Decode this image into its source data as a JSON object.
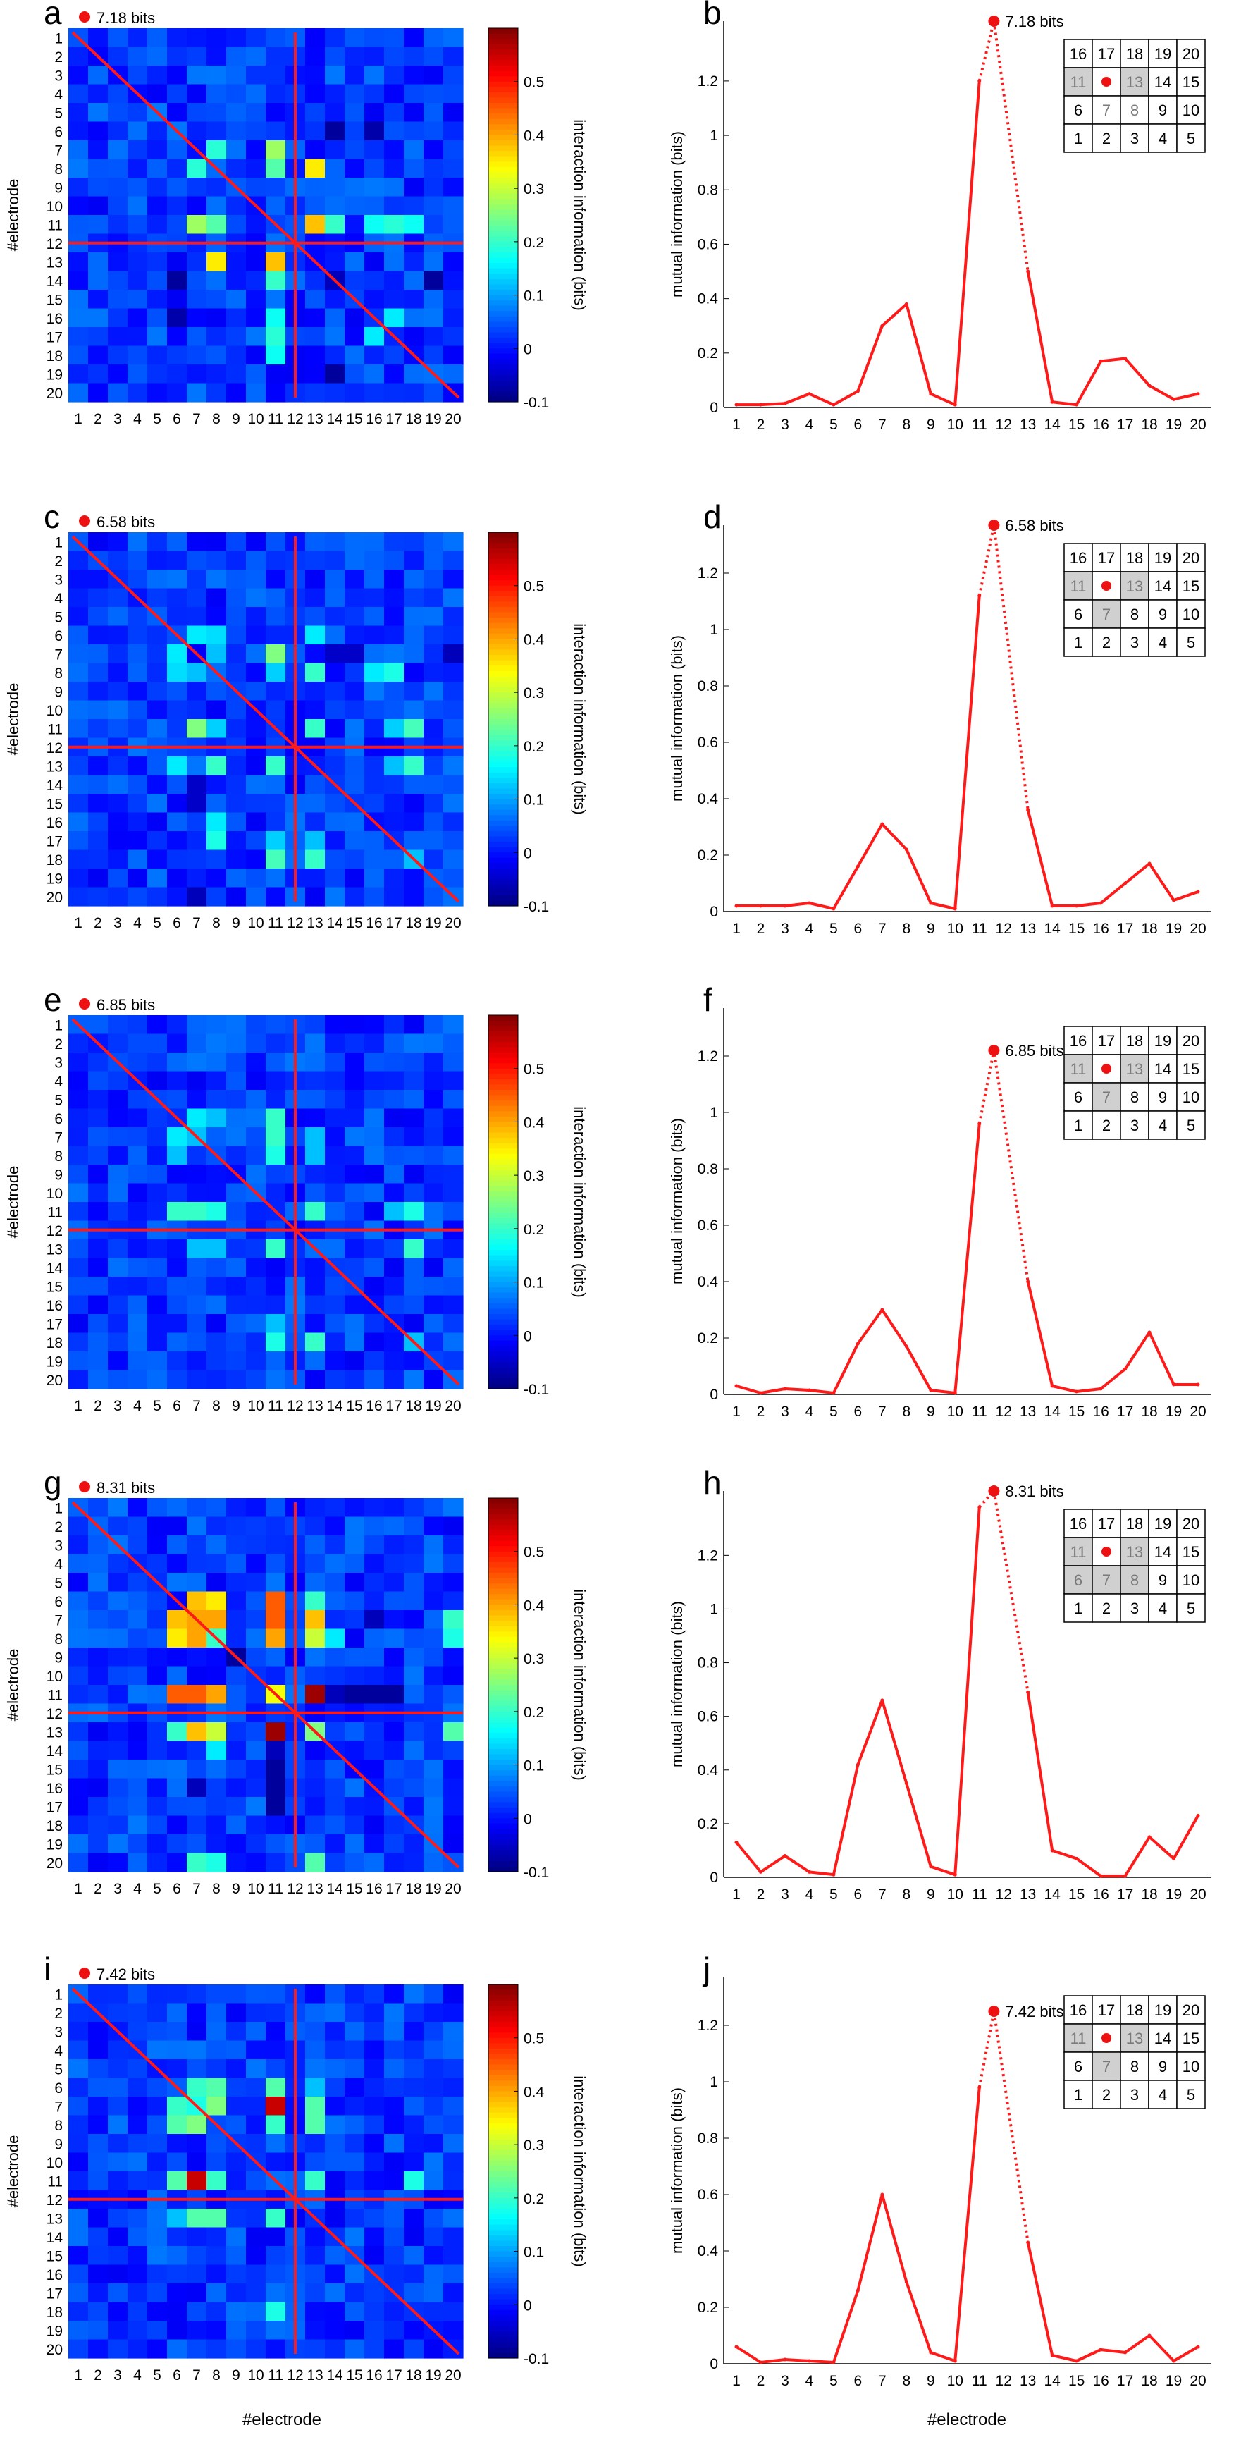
{
  "figure": {
    "shared_xlabel_left": "#electrode",
    "shared_xlabel_right": "#electrode",
    "heatmap_ylabel": "#electrode",
    "colorbar_label": "interaction information (bits)",
    "colorbar_ticks": [
      "0.5",
      "0.4",
      "0.3",
      "0.2",
      "0.1",
      "0",
      "-0.1"
    ],
    "colorbar_tick_values": [
      0.5,
      0.4,
      0.3,
      0.2,
      0.1,
      0,
      -0.1
    ],
    "colorbar_range": [
      -0.1,
      0.6
    ],
    "mi_ylabel": "mutual information (bits)",
    "electrode_labels": [
      "1",
      "2",
      "3",
      "4",
      "5",
      "6",
      "7",
      "8",
      "9",
      "10",
      "11",
      "12",
      "13",
      "14",
      "15",
      "16",
      "17",
      "18",
      "19",
      "20"
    ],
    "grid_rows": [
      [
        "16",
        "17",
        "18",
        "19",
        "20"
      ],
      [
        "11",
        "12",
        "13",
        "14",
        "15"
      ],
      [
        "6",
        "7",
        "8",
        "9",
        "10"
      ],
      [
        "1",
        "2",
        "3",
        "4",
        "5"
      ]
    ],
    "colors": {
      "line": "#ff1a1a",
      "marker": "#ee1111",
      "cell_gray": "#d0d0d0",
      "gray_text": "#7a7a7a"
    }
  },
  "chart_data": [
    {
      "type": "heatmap",
      "panel": "a",
      "total_label": "7.18 bits",
      "target_electrode": 12,
      "hot_cells": [
        [
          7,
          8,
          0.22
        ],
        [
          8,
          7,
          0.19
        ],
        [
          8,
          13,
          0.32
        ],
        [
          11,
          7,
          0.3
        ],
        [
          11,
          8,
          0.2
        ],
        [
          11,
          13,
          0.35
        ],
        [
          11,
          16,
          0.17
        ],
        [
          11,
          17,
          0.17
        ],
        [
          11,
          18,
          0.17
        ],
        [
          7,
          11,
          0.27
        ],
        [
          8,
          11,
          0.22
        ],
        [
          13,
          8,
          0.35
        ],
        [
          13,
          11,
          0.38
        ],
        [
          14,
          11,
          0.2
        ],
        [
          16,
          11,
          0.17
        ],
        [
          17,
          11,
          0.19
        ],
        [
          16,
          17,
          0.15
        ],
        [
          6,
          14,
          -0.08
        ],
        [
          6,
          16,
          -0.07
        ],
        [
          14,
          14,
          -0.06
        ],
        [
          19,
          14,
          -0.08
        ]
      ]
    },
    {
      "type": "line",
      "panel": "b",
      "peak_label": "7.18 bits",
      "peak": 1.42,
      "x": [
        1,
        2,
        3,
        4,
        5,
        6,
        7,
        8,
        9,
        10,
        11,
        12,
        13,
        14,
        15,
        16,
        17,
        18,
        19,
        20
      ],
      "values": [
        0.01,
        0.01,
        0.015,
        0.05,
        0.01,
        0.06,
        0.3,
        0.38,
        0.05,
        0.01,
        1.2,
        null,
        0.5,
        0.02,
        0.01,
        0.17,
        0.18,
        0.08,
        0.03,
        0.05
      ],
      "ylim": [
        0,
        1.42
      ],
      "yticks": [
        0,
        0.2,
        0.4,
        0.6,
        0.8,
        1,
        1.2
      ],
      "gray_cells": [
        "11",
        "13"
      ],
      "gray_text_cells": [
        "11",
        "13",
        "7",
        "8"
      ]
    },
    {
      "type": "heatmap",
      "panel": "c",
      "total_label": "6.58 bits",
      "target_electrode": 12,
      "hot_cells": [
        [
          6,
          7,
          0.15
        ],
        [
          6,
          8,
          0.14
        ],
        [
          6,
          13,
          0.15
        ],
        [
          7,
          11,
          0.22
        ],
        [
          8,
          7,
          0.12
        ],
        [
          8,
          13,
          0.12
        ],
        [
          11,
          7,
          0.25
        ],
        [
          11,
          8,
          0.13
        ],
        [
          11,
          13,
          0.22
        ],
        [
          11,
          17,
          0.13
        ],
        [
          11,
          18,
          0.21
        ],
        [
          13,
          8,
          0.2
        ],
        [
          13,
          11,
          0.2
        ],
        [
          13,
          18,
          0.14
        ],
        [
          16,
          8,
          0.15
        ],
        [
          17,
          8,
          0.18
        ],
        [
          17,
          13,
          0.12
        ],
        [
          18,
          13,
          0.2
        ],
        [
          18,
          18,
          0.12
        ],
        [
          7,
          14,
          -0.05
        ],
        [
          7,
          15,
          -0.05
        ],
        [
          7,
          20,
          -0.06
        ]
      ]
    },
    {
      "type": "line",
      "panel": "d",
      "peak_label": "6.58 bits",
      "peak": 1.37,
      "x": [
        1,
        2,
        3,
        4,
        5,
        6,
        7,
        8,
        9,
        10,
        11,
        12,
        13,
        14,
        15,
        16,
        17,
        18,
        19,
        20
      ],
      "values": [
        0.02,
        0.02,
        0.02,
        0.03,
        0.01,
        0.16,
        0.31,
        0.22,
        0.03,
        0.01,
        1.12,
        null,
        0.36,
        0.02,
        0.02,
        0.03,
        0.1,
        0.17,
        0.04,
        0.07
      ],
      "ylim": [
        0,
        1.37
      ],
      "yticks": [
        0,
        0.2,
        0.4,
        0.6,
        0.8,
        1,
        1.2
      ],
      "gray_cells": [
        "11",
        "13",
        "7"
      ],
      "gray_text_cells": [
        "11",
        "13",
        "7"
      ]
    },
    {
      "type": "heatmap",
      "panel": "e",
      "total_label": "6.85 bits",
      "target_electrode": 12,
      "hot_cells": [
        [
          6,
          7,
          0.15
        ],
        [
          6,
          8,
          0.12
        ],
        [
          6,
          11,
          0.2
        ],
        [
          7,
          7,
          0.12
        ],
        [
          7,
          11,
          0.18
        ],
        [
          7,
          13,
          0.12
        ],
        [
          8,
          11,
          0.12
        ],
        [
          11,
          7,
          0.2
        ],
        [
          11,
          8,
          0.18
        ],
        [
          11,
          13,
          0.2
        ],
        [
          11,
          17,
          0.14
        ],
        [
          11,
          18,
          0.2
        ],
        [
          13,
          8,
          0.12
        ],
        [
          13,
          11,
          0.2
        ],
        [
          13,
          18,
          0.22
        ],
        [
          17,
          11,
          0.12
        ],
        [
          18,
          11,
          0.18
        ],
        [
          18,
          13,
          0.2
        ],
        [
          18,
          18,
          0.12
        ]
      ]
    },
    {
      "type": "line",
      "panel": "f",
      "peak_label": "6.85 bits",
      "peak": 1.22,
      "x": [
        1,
        2,
        3,
        4,
        5,
        6,
        7,
        8,
        9,
        10,
        11,
        12,
        13,
        14,
        15,
        16,
        17,
        18,
        19,
        20
      ],
      "values": [
        0.03,
        0.005,
        0.02,
        0.015,
        0.005,
        0.18,
        0.3,
        0.17,
        0.015,
        0.005,
        0.96,
        null,
        0.4,
        0.03,
        0.01,
        0.02,
        0.09,
        0.22,
        0.035,
        0.035
      ],
      "ylim": [
        0,
        1.37
      ],
      "yticks": [
        0,
        0.2,
        0.4,
        0.6,
        0.8,
        1,
        1.2
      ],
      "gray_cells": [
        "11",
        "13",
        "7"
      ],
      "gray_text_cells": [
        "11",
        "13",
        "7"
      ]
    },
    {
      "type": "heatmap",
      "panel": "g",
      "total_label": "8.31 bits",
      "target_electrode": 12,
      "hot_cells": [
        [
          6,
          7,
          0.33
        ],
        [
          6,
          8,
          0.38
        ],
        [
          6,
          11,
          0.45
        ],
        [
          6,
          13,
          0.2
        ],
        [
          7,
          6,
          0.38
        ],
        [
          7,
          7,
          0.4
        ],
        [
          7,
          8,
          0.35
        ],
        [
          7,
          11,
          0.55
        ],
        [
          7,
          13,
          0.35
        ],
        [
          8,
          6,
          0.35
        ],
        [
          8,
          7,
          0.4
        ],
        [
          8,
          8,
          0.2
        ],
        [
          8,
          11,
          0.3
        ],
        [
          8,
          13,
          0.25
        ],
        [
          11,
          6,
          0.45
        ],
        [
          11,
          7,
          0.45
        ],
        [
          11,
          8,
          0.4
        ],
        [
          11,
          11,
          0.33
        ],
        [
          11,
          13,
          0.55
        ],
        [
          11,
          14,
          -0.06
        ],
        [
          11,
          15,
          -0.06
        ],
        [
          11,
          16,
          -0.06
        ],
        [
          13,
          7,
          0.38
        ],
        [
          13,
          8,
          0.3
        ],
        [
          13,
          11,
          0.58
        ],
        [
          13,
          13,
          0.25
        ],
        [
          13,
          20,
          0.2
        ],
        [
          14,
          8,
          0.15
        ],
        [
          7,
          20,
          0.2
        ],
        [
          9,
          9,
          -0.08
        ],
        [
          15,
          11,
          -0.08
        ],
        [
          16,
          11,
          -0.08
        ],
        [
          17,
          11,
          -0.08
        ],
        [
          16,
          7,
          -0.06
        ],
        [
          20,
          8,
          0.18
        ],
        [
          20,
          13,
          0.22
        ]
      ]
    },
    {
      "type": "line",
      "panel": "h",
      "peak_label": "8.31 bits",
      "peak": 1.44,
      "x": [
        1,
        2,
        3,
        4,
        5,
        6,
        7,
        8,
        9,
        10,
        11,
        12,
        13,
        14,
        15,
        16,
        17,
        18,
        19,
        20
      ],
      "values": [
        0.13,
        0.02,
        0.08,
        0.02,
        0.01,
        0.42,
        0.66,
        0.35,
        0.04,
        0.01,
        1.38,
        null,
        0.69,
        0.1,
        0.07,
        0.005,
        0.005,
        0.15,
        0.07,
        0.23
      ],
      "ylim": [
        0,
        1.44
      ],
      "yticks": [
        0,
        0.2,
        0.4,
        0.6,
        0.8,
        1,
        1.2
      ],
      "gray_cells": [
        "11",
        "13",
        "6",
        "7",
        "8"
      ],
      "gray_text_cells": [
        "11",
        "13",
        "6",
        "7",
        "8"
      ]
    },
    {
      "type": "heatmap",
      "panel": "i",
      "total_label": "7.42 bits",
      "target_electrode": 12,
      "hot_cells": [
        [
          6,
          7,
          0.2
        ],
        [
          6,
          8,
          0.15
        ],
        [
          6,
          11,
          0.22
        ],
        [
          6,
          13,
          0.12
        ],
        [
          7,
          6,
          0.2
        ],
        [
          7,
          7,
          0.18
        ],
        [
          7,
          8,
          0.22
        ],
        [
          7,
          11,
          0.5
        ],
        [
          7,
          13,
          0.2
        ],
        [
          8,
          6,
          0.22
        ],
        [
          8,
          7,
          0.25
        ],
        [
          8,
          11,
          0.18
        ],
        [
          8,
          13,
          0.2
        ],
        [
          11,
          7,
          0.55
        ],
        [
          11,
          8,
          0.2
        ],
        [
          11,
          13,
          0.2
        ],
        [
          11,
          18,
          0.18
        ],
        [
          13,
          7,
          0.22
        ],
        [
          13,
          8,
          0.22
        ],
        [
          13,
          11,
          0.2
        ]
      ]
    },
    {
      "type": "line",
      "panel": "j",
      "peak_label": "7.42 bits",
      "peak": 1.25,
      "x": [
        1,
        2,
        3,
        4,
        5,
        6,
        7,
        8,
        9,
        10,
        11,
        12,
        13,
        14,
        15,
        16,
        17,
        18,
        19,
        20
      ],
      "values": [
        0.06,
        0.005,
        0.015,
        0.01,
        0.005,
        0.26,
        0.6,
        0.29,
        0.04,
        0.01,
        0.98,
        null,
        0.43,
        0.03,
        0.01,
        0.05,
        0.04,
        0.1,
        0.01,
        0.06
      ],
      "ylim": [
        0,
        1.37
      ],
      "yticks": [
        0,
        0.2,
        0.4,
        0.6,
        0.8,
        1,
        1.2
      ],
      "gray_cells": [
        "11",
        "13",
        "7"
      ],
      "gray_text_cells": [
        "11",
        "13",
        "7"
      ]
    }
  ]
}
